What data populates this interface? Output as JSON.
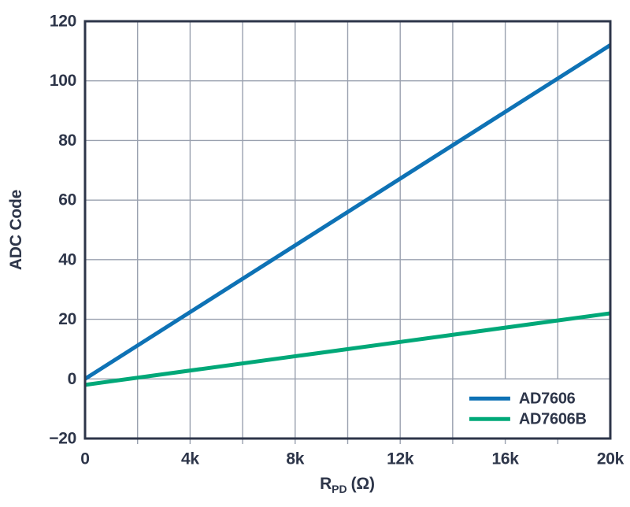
{
  "colors": {
    "text": "#2d3549",
    "axis": "#2d3549",
    "grid": "#9aa1af",
    "legend_border": "#9aa1af",
    "background": "#ffffff",
    "series_blue": "#0e72b5",
    "series_green": "#00a878"
  },
  "chart_data": {
    "type": "line",
    "title": "",
    "ylabel": "ADC Code",
    "xlabel": {
      "base": "R",
      "sub": "PD",
      "unit": "(Ω)"
    },
    "xlim": [
      0,
      20000
    ],
    "ylim": [
      -20,
      120
    ],
    "x_grid_step": 2000,
    "x_major_ticks": [
      0,
      4000,
      8000,
      12000,
      16000,
      20000
    ],
    "x_tick_labels": [
      "0",
      "4k",
      "8k",
      "12k",
      "16k",
      "20k"
    ],
    "y_ticks": [
      -20,
      0,
      20,
      40,
      60,
      80,
      100,
      120
    ],
    "y_tick_labels": [
      "−20",
      "0",
      "20",
      "40",
      "60",
      "80",
      "100",
      "120"
    ],
    "grid": true,
    "legend_position": "lower-right",
    "series": [
      {
        "name": "AD7606",
        "color": "#0e72b5",
        "x": [
          0,
          20000
        ],
        "y": [
          0,
          112
        ]
      },
      {
        "name": "AD7606B",
        "color": "#00a878",
        "x": [
          0,
          20000
        ],
        "y": [
          -2,
          22
        ]
      }
    ]
  }
}
